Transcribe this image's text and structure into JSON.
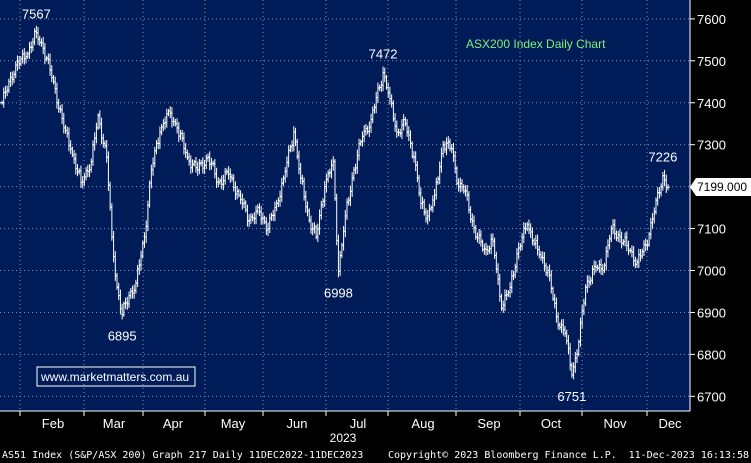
{
  "chart_data": {
    "type": "line",
    "style": "ohlc-bars",
    "title": "ASX200 Index Daily Chart",
    "watermark": "www.marketmatters.com.au",
    "y_ticks": [
      6700,
      6800,
      6900,
      7000,
      7100,
      7200,
      7300,
      7400,
      7500,
      7600
    ],
    "ylim": [
      6665,
      7645
    ],
    "x_months": [
      "Feb",
      "Mar",
      "Apr",
      "May",
      "Jun",
      "Jul",
      "Aug",
      "Sep",
      "Oct",
      "Nov",
      "Dec"
    ],
    "x_year": "2023",
    "last_price_label": "7199.000",
    "annotations": [
      {
        "text": "7567",
        "i": 20
      },
      {
        "text": "6895",
        "i": 70
      },
      {
        "text": "6998",
        "i": 196
      },
      {
        "text": "7472",
        "i": 222
      },
      {
        "text": "6751",
        "i": 332
      },
      {
        "text": "7226",
        "i": 385
      }
    ],
    "anchors": [
      [
        0,
        7400
      ],
      [
        8,
        7490
      ],
      [
        14,
        7510
      ],
      [
        20,
        7567
      ],
      [
        24,
        7530
      ],
      [
        30,
        7450
      ],
      [
        36,
        7340
      ],
      [
        40,
        7290
      ],
      [
        46,
        7210
      ],
      [
        52,
        7260
      ],
      [
        56,
        7370
      ],
      [
        61,
        7270
      ],
      [
        64,
        7080
      ],
      [
        67,
        6960
      ],
      [
        70,
        6895
      ],
      [
        74,
        6940
      ],
      [
        78,
        6970
      ],
      [
        83,
        7080
      ],
      [
        87,
        7240
      ],
      [
        92,
        7330
      ],
      [
        97,
        7380
      ],
      [
        102,
        7340
      ],
      [
        108,
        7270
      ],
      [
        114,
        7240
      ],
      [
        120,
        7270
      ],
      [
        126,
        7210
      ],
      [
        132,
        7230
      ],
      [
        138,
        7180
      ],
      [
        144,
        7120
      ],
      [
        150,
        7140
      ],
      [
        155,
        7100
      ],
      [
        160,
        7160
      ],
      [
        164,
        7220
      ],
      [
        170,
        7330
      ],
      [
        174,
        7220
      ],
      [
        179,
        7120
      ],
      [
        183,
        7080
      ],
      [
        188,
        7200
      ],
      [
        193,
        7260
      ],
      [
        196,
        6998
      ],
      [
        200,
        7130
      ],
      [
        205,
        7240
      ],
      [
        210,
        7320
      ],
      [
        215,
        7360
      ],
      [
        222,
        7472
      ],
      [
        226,
        7410
      ],
      [
        230,
        7330
      ],
      [
        235,
        7350
      ],
      [
        240,
        7270
      ],
      [
        244,
        7160
      ],
      [
        248,
        7130
      ],
      [
        252,
        7180
      ],
      [
        257,
        7300
      ],
      [
        262,
        7290
      ],
      [
        266,
        7200
      ],
      [
        270,
        7190
      ],
      [
        276,
        7080
      ],
      [
        282,
        7050
      ],
      [
        286,
        7070
      ],
      [
        291,
        6910
      ],
      [
        296,
        6960
      ],
      [
        300,
        7040
      ],
      [
        306,
        7110
      ],
      [
        312,
        7050
      ],
      [
        318,
        7000
      ],
      [
        323,
        6890
      ],
      [
        328,
        6850
      ],
      [
        332,
        6751
      ],
      [
        336,
        6830
      ],
      [
        340,
        6960
      ],
      [
        345,
        7010
      ],
      [
        350,
        7000
      ],
      [
        355,
        7100
      ],
      [
        360,
        7080
      ],
      [
        364,
        7060
      ],
      [
        370,
        7020
      ],
      [
        375,
        7060
      ],
      [
        380,
        7140
      ],
      [
        385,
        7226
      ],
      [
        388,
        7199
      ]
    ],
    "last_value": 7199.0
  },
  "footer": {
    "left": "AS51 Index (S&P/ASX 200) Graph 217  Daily 11DEC2022-11DEC2023",
    "center": "Copyright© 2023 Bloomberg Finance L.P.",
    "right": "11-Dec-2023 16:13:58"
  },
  "colors": {
    "background": "#001c58",
    "price": "#ffffff",
    "grid": "#7f8fad",
    "axis_panel": "#000000",
    "title": "#7cf27c",
    "watermark": "#ffffff"
  }
}
